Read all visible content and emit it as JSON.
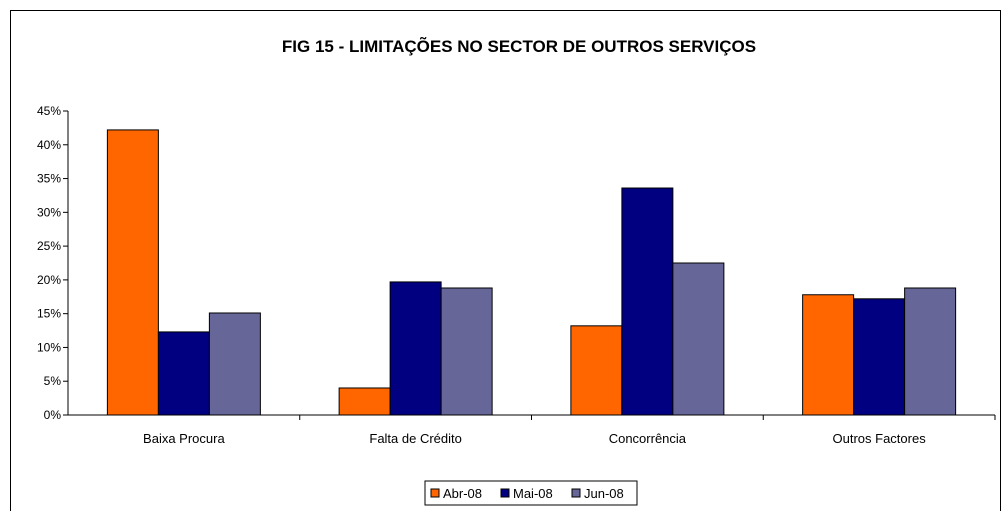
{
  "chart_data": {
    "type": "bar",
    "title": "FIG 15 - LIMITAÇÕES  NO SECTOR DE OUTROS SERVIÇOS",
    "categories": [
      "Baixa Procura",
      "Falta de Crédito",
      "Concorrência",
      "Outros Factores"
    ],
    "series": [
      {
        "name": "Abr-08",
        "values": [
          42.2,
          4.0,
          13.2,
          17.8
        ],
        "color": "#ff6600"
      },
      {
        "name": "Mai-08",
        "values": [
          12.3,
          19.7,
          33.6,
          17.2
        ],
        "color": "#000080"
      },
      {
        "name": "Jun-08",
        "values": [
          15.1,
          18.8,
          22.5,
          18.8
        ],
        "color": "#666699"
      }
    ],
    "ylim": [
      0,
      45
    ],
    "yticks": [
      0,
      5,
      10,
      15,
      20,
      25,
      30,
      35,
      40,
      45
    ],
    "ytick_labels": [
      "0%",
      "5%",
      "10%",
      "15%",
      "20%",
      "25%",
      "30%",
      "35%",
      "40%",
      "45%"
    ],
    "xlabel": "",
    "ylabel": "",
    "grid": false,
    "legend_position": "bottom"
  }
}
